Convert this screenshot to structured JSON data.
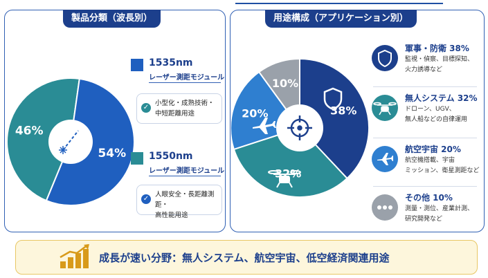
{
  "left_panel": {
    "title": "製品分類（波長別）",
    "legend": [
      {
        "main": "1535nm",
        "sub": "レーザー測距モジュール",
        "color": "#1f5fbf"
      },
      {
        "main": "1550nm",
        "sub": "レーザー測距モジュール",
        "color": "#2a8c95"
      }
    ],
    "features": [
      {
        "lines": [
          "小型化・成熟技術・",
          "中短距離用途"
        ],
        "check_color": "#2a8c95"
      },
      {
        "lines": [
          "人眼安全・長距離測距・",
          "高性能用途"
        ],
        "check_color": "#1f5fbf"
      }
    ]
  },
  "right_panel": {
    "title": "用途構成（アプリケーション別）",
    "apps": [
      {
        "title": "軍事・防衛 38%",
        "desc": [
          "監視・偵察、目標探知、",
          "火力誘導など"
        ],
        "color": "#1c3f8c",
        "icon": "shield-icon"
      },
      {
        "title": "無人システム 32%",
        "desc": [
          "ドローン、UGV、",
          "無人船などの自律運用"
        ],
        "color": "#2a8c95",
        "icon": "drone-icon"
      },
      {
        "title": "航空宇宙 20%",
        "desc": [
          "航空機搭載、宇宙",
          "ミッション、衛星測距など"
        ],
        "color": "#2f7fd0",
        "icon": "airplane-icon"
      },
      {
        "title": "その他 10%",
        "desc": [
          "測量・測位、産業計測、",
          "研究開発など"
        ],
        "color": "#9aa1aa",
        "icon": "more-icon"
      }
    ]
  },
  "banner": {
    "text": "成長が速い分野：無人システム、航空宇宙、低空経済関連用途",
    "icon": "growth-chart-icon"
  },
  "chart_data": [
    {
      "type": "pie",
      "categories": [
        "1550nm",
        "1535nm"
      ],
      "values": [
        46,
        54
      ],
      "labels": [
        "46%",
        "54%"
      ],
      "colors": [
        "#2a8c95",
        "#1f5fbf"
      ]
    },
    {
      "type": "pie",
      "categories": [
        "軍事・防衛",
        "無人システム",
        "航空宇宙",
        "その他"
      ],
      "values": [
        38,
        32,
        20,
        10
      ],
      "labels": [
        "38%",
        "32%",
        "20%",
        "10%"
      ],
      "colors": [
        "#1c3f8c",
        "#2a8c95",
        "#2f7fd0",
        "#9aa1aa"
      ]
    }
  ]
}
